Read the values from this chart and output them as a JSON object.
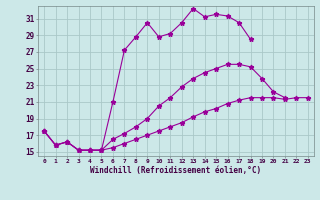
{
  "xlabel": "Windchill (Refroidissement éolien,°C)",
  "bg_color": "#cce8e8",
  "grid_color": "#aac8c8",
  "line_color": "#990099",
  "xmin": 0,
  "xmax": 23,
  "ymin": 15,
  "ymax": 32,
  "yticks": [
    15,
    17,
    19,
    21,
    23,
    25,
    27,
    29,
    31
  ],
  "series1_x": [
    0,
    1,
    2,
    3,
    4,
    5,
    6,
    7,
    8,
    9,
    10,
    11,
    12,
    13,
    14,
    15,
    16,
    17,
    18
  ],
  "series1_y": [
    17.5,
    15.8,
    16.2,
    15.2,
    15.2,
    15.2,
    21.0,
    27.2,
    28.8,
    30.5,
    28.8,
    29.2,
    30.5,
    32.2,
    31.2,
    31.5,
    31.3,
    30.5,
    28.5
  ],
  "series2_x": [
    0,
    1,
    2,
    3,
    4,
    5,
    6,
    7,
    8,
    9,
    10,
    11,
    12,
    13,
    14,
    15,
    16,
    17,
    18,
    19,
    20,
    21
  ],
  "series2_y": [
    17.5,
    15.8,
    16.2,
    15.2,
    15.2,
    15.2,
    16.5,
    17.2,
    18.0,
    19.0,
    20.5,
    21.5,
    22.8,
    23.8,
    24.5,
    25.0,
    25.5,
    25.5,
    25.2,
    23.8,
    22.2,
    21.5
  ],
  "series3_x": [
    0,
    1,
    2,
    3,
    4,
    5,
    6,
    7,
    8,
    9,
    10,
    11,
    12,
    13,
    14,
    15,
    16,
    17,
    18,
    19,
    20,
    21,
    22,
    23
  ],
  "series3_y": [
    17.5,
    15.8,
    16.2,
    15.2,
    15.2,
    15.2,
    15.5,
    16.0,
    16.5,
    17.0,
    17.5,
    18.0,
    18.5,
    19.2,
    19.8,
    20.2,
    20.8,
    21.2,
    21.5,
    21.5,
    21.5,
    21.3,
    21.5,
    21.5
  ]
}
